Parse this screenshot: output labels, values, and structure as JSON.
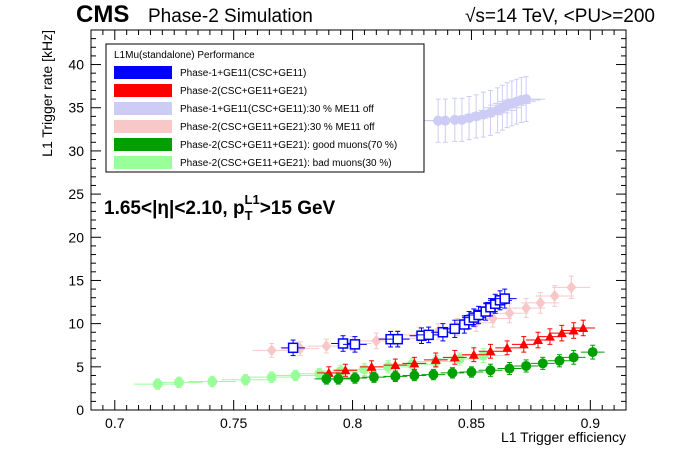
{
  "header": {
    "experiment": "CMS",
    "subtitle": "Phase-2 Simulation",
    "energy_pu": "√s=14 TeV, <PU>=200"
  },
  "chart_data": {
    "type": "scatter",
    "title": "",
    "xlabel": "L1 Trigger efficiency",
    "ylabel": "L1 Trigger rate [kHz]",
    "xlim": [
      0.69,
      0.915
    ],
    "ylim": [
      0,
      44
    ],
    "x_ticks": [
      "0.7",
      "0.75",
      "0.8",
      "0.85",
      "0.9"
    ],
    "y_ticks": [
      "0",
      "5",
      "10",
      "15",
      "20",
      "25",
      "30",
      "35",
      "40"
    ],
    "annotation": {
      "eta_prefix": "1.65<|η|<2.10, p",
      "sub": "T",
      "sup": "L1",
      "suffix": ">15 GeV"
    },
    "legend": {
      "title": "L1Mu(standalone) Performance",
      "position": "top-left"
    },
    "series": [
      {
        "name": "Phase-1+GE11(CSC+GE11)",
        "color": "#0000ff",
        "marker": "open-square",
        "points": [
          {
            "x": 0.775,
            "y": 7.2,
            "xerr": 0.005,
            "yerr": 0.9
          },
          {
            "x": 0.796,
            "y": 7.7,
            "xerr": 0.005,
            "yerr": 0.9
          },
          {
            "x": 0.801,
            "y": 7.6,
            "xerr": 0.005,
            "yerr": 0.9
          },
          {
            "x": 0.816,
            "y": 8.2,
            "xerr": 0.005,
            "yerr": 0.9
          },
          {
            "x": 0.819,
            "y": 8.2,
            "xerr": 0.005,
            "yerr": 0.9
          },
          {
            "x": 0.829,
            "y": 8.6,
            "xerr": 0.005,
            "yerr": 0.9
          },
          {
            "x": 0.832,
            "y": 8.7,
            "xerr": 0.005,
            "yerr": 0.9
          },
          {
            "x": 0.838,
            "y": 9.0,
            "xerr": 0.005,
            "yerr": 1.0
          },
          {
            "x": 0.843,
            "y": 9.4,
            "xerr": 0.005,
            "yerr": 1.0
          },
          {
            "x": 0.847,
            "y": 9.9,
            "xerr": 0.005,
            "yerr": 1.0
          },
          {
            "x": 0.849,
            "y": 10.4,
            "xerr": 0.005,
            "yerr": 1.0
          },
          {
            "x": 0.851,
            "y": 10.7,
            "xerr": 0.005,
            "yerr": 1.0
          },
          {
            "x": 0.853,
            "y": 11.0,
            "xerr": 0.005,
            "yerr": 1.0
          },
          {
            "x": 0.856,
            "y": 11.4,
            "xerr": 0.005,
            "yerr": 1.0
          },
          {
            "x": 0.858,
            "y": 11.9,
            "xerr": 0.005,
            "yerr": 1.0
          },
          {
            "x": 0.86,
            "y": 12.3,
            "xerr": 0.005,
            "yerr": 1.1
          },
          {
            "x": 0.862,
            "y": 12.7,
            "xerr": 0.005,
            "yerr": 1.1
          },
          {
            "x": 0.864,
            "y": 12.9,
            "xerr": 0.005,
            "yerr": 1.1
          }
        ]
      },
      {
        "name": "Phase-2(CSC+GE11+GE21)",
        "color": "#ff0000",
        "marker": "filled-triangle",
        "points": [
          {
            "x": 0.79,
            "y": 4.3,
            "xerr": 0.005,
            "yerr": 0.7
          },
          {
            "x": 0.797,
            "y": 4.6,
            "xerr": 0.005,
            "yerr": 0.7
          },
          {
            "x": 0.808,
            "y": 5.0,
            "xerr": 0.005,
            "yerr": 0.7
          },
          {
            "x": 0.818,
            "y": 5.2,
            "xerr": 0.005,
            "yerr": 0.7
          },
          {
            "x": 0.826,
            "y": 5.4,
            "xerr": 0.005,
            "yerr": 0.7
          },
          {
            "x": 0.835,
            "y": 5.8,
            "xerr": 0.005,
            "yerr": 0.8
          },
          {
            "x": 0.843,
            "y": 6.1,
            "xerr": 0.005,
            "yerr": 0.8
          },
          {
            "x": 0.851,
            "y": 6.4,
            "xerr": 0.005,
            "yerr": 0.8
          },
          {
            "x": 0.858,
            "y": 6.8,
            "xerr": 0.005,
            "yerr": 0.8
          },
          {
            "x": 0.865,
            "y": 7.2,
            "xerr": 0.005,
            "yerr": 0.8
          },
          {
            "x": 0.872,
            "y": 7.6,
            "xerr": 0.005,
            "yerr": 0.9
          },
          {
            "x": 0.878,
            "y": 8.1,
            "xerr": 0.005,
            "yerr": 0.9
          },
          {
            "x": 0.883,
            "y": 8.5,
            "xerr": 0.005,
            "yerr": 0.9
          },
          {
            "x": 0.888,
            "y": 8.9,
            "xerr": 0.005,
            "yerr": 0.9
          },
          {
            "x": 0.893,
            "y": 9.2,
            "xerr": 0.005,
            "yerr": 0.9
          },
          {
            "x": 0.897,
            "y": 9.5,
            "xerr": 0.005,
            "yerr": 0.9
          }
        ]
      },
      {
        "name": "Phase-1+GE11(CSC+GE11):30 % ME11 off",
        "color": "#ccccf5",
        "marker": "filled-circle",
        "points": [
          {
            "x": 0.836,
            "y": 33.5,
            "xerr": 0.008,
            "yerr": 2.5
          },
          {
            "x": 0.839,
            "y": 33.5,
            "xerr": 0.008,
            "yerr": 2.5
          },
          {
            "x": 0.843,
            "y": 33.6,
            "xerr": 0.008,
            "yerr": 2.5
          },
          {
            "x": 0.846,
            "y": 33.6,
            "xerr": 0.008,
            "yerr": 2.5
          },
          {
            "x": 0.849,
            "y": 33.8,
            "xerr": 0.008,
            "yerr": 2.5
          },
          {
            "x": 0.852,
            "y": 34.0,
            "xerr": 0.008,
            "yerr": 2.5
          },
          {
            "x": 0.855,
            "y": 34.2,
            "xerr": 0.008,
            "yerr": 2.6
          },
          {
            "x": 0.858,
            "y": 34.4,
            "xerr": 0.008,
            "yerr": 2.6
          },
          {
            "x": 0.861,
            "y": 34.7,
            "xerr": 0.008,
            "yerr": 2.6
          },
          {
            "x": 0.863,
            "y": 35.0,
            "xerr": 0.008,
            "yerr": 2.6
          },
          {
            "x": 0.865,
            "y": 35.3,
            "xerr": 0.008,
            "yerr": 2.6
          },
          {
            "x": 0.867,
            "y": 35.5,
            "xerr": 0.008,
            "yerr": 2.6
          },
          {
            "x": 0.869,
            "y": 35.7,
            "xerr": 0.008,
            "yerr": 2.6
          },
          {
            "x": 0.871,
            "y": 35.9,
            "xerr": 0.008,
            "yerr": 2.6
          },
          {
            "x": 0.873,
            "y": 36.0,
            "xerr": 0.008,
            "yerr": 2.6
          }
        ]
      },
      {
        "name": "Phase-2(CSC+GE11+GE21):30 % ME11 off",
        "color": "#f8c8c8",
        "marker": "filled-diamond",
        "points": [
          {
            "x": 0.766,
            "y": 6.9,
            "xerr": 0.008,
            "yerr": 0.8
          },
          {
            "x": 0.778,
            "y": 7.1,
            "xerr": 0.008,
            "yerr": 0.8
          },
          {
            "x": 0.789,
            "y": 7.4,
            "xerr": 0.008,
            "yerr": 0.8
          },
          {
            "x": 0.8,
            "y": 7.7,
            "xerr": 0.008,
            "yerr": 0.8
          },
          {
            "x": 0.81,
            "y": 8.0,
            "xerr": 0.008,
            "yerr": 0.9
          },
          {
            "x": 0.819,
            "y": 8.3,
            "xerr": 0.008,
            "yerr": 0.9
          },
          {
            "x": 0.828,
            "y": 8.7,
            "xerr": 0.008,
            "yerr": 0.9
          },
          {
            "x": 0.836,
            "y": 9.1,
            "xerr": 0.008,
            "yerr": 0.9
          },
          {
            "x": 0.844,
            "y": 9.6,
            "xerr": 0.008,
            "yerr": 1.0
          },
          {
            "x": 0.852,
            "y": 10.1,
            "xerr": 0.008,
            "yerr": 1.0
          },
          {
            "x": 0.859,
            "y": 10.6,
            "xerr": 0.008,
            "yerr": 1.0
          },
          {
            "x": 0.866,
            "y": 11.2,
            "xerr": 0.008,
            "yerr": 1.1
          },
          {
            "x": 0.873,
            "y": 11.8,
            "xerr": 0.008,
            "yerr": 1.1
          },
          {
            "x": 0.879,
            "y": 12.4,
            "xerr": 0.008,
            "yerr": 1.2
          },
          {
            "x": 0.885,
            "y": 13.2,
            "xerr": 0.008,
            "yerr": 1.2
          },
          {
            "x": 0.892,
            "y": 14.2,
            "xerr": 0.008,
            "yerr": 1.3
          }
        ]
      },
      {
        "name": "Phase-2(CSC+GE11+GE21): good muons(70 %)",
        "color": "#00a000",
        "marker": "filled-circle",
        "points": [
          {
            "x": 0.789,
            "y": 3.6,
            "xerr": 0.005,
            "yerr": 0.6
          },
          {
            "x": 0.794,
            "y": 3.6,
            "xerr": 0.005,
            "yerr": 0.6
          },
          {
            "x": 0.801,
            "y": 3.7,
            "xerr": 0.005,
            "yerr": 0.6
          },
          {
            "x": 0.809,
            "y": 3.8,
            "xerr": 0.005,
            "yerr": 0.6
          },
          {
            "x": 0.818,
            "y": 3.9,
            "xerr": 0.005,
            "yerr": 0.6
          },
          {
            "x": 0.826,
            "y": 4.0,
            "xerr": 0.005,
            "yerr": 0.6
          },
          {
            "x": 0.834,
            "y": 4.1,
            "xerr": 0.005,
            "yerr": 0.6
          },
          {
            "x": 0.842,
            "y": 4.3,
            "xerr": 0.005,
            "yerr": 0.6
          },
          {
            "x": 0.85,
            "y": 4.4,
            "xerr": 0.005,
            "yerr": 0.6
          },
          {
            "x": 0.858,
            "y": 4.6,
            "xerr": 0.005,
            "yerr": 0.7
          },
          {
            "x": 0.866,
            "y": 4.8,
            "xerr": 0.005,
            "yerr": 0.7
          },
          {
            "x": 0.873,
            "y": 5.1,
            "xerr": 0.005,
            "yerr": 0.7
          },
          {
            "x": 0.88,
            "y": 5.4,
            "xerr": 0.005,
            "yerr": 0.7
          },
          {
            "x": 0.887,
            "y": 5.7,
            "xerr": 0.005,
            "yerr": 0.7
          },
          {
            "x": 0.893,
            "y": 6.1,
            "xerr": 0.005,
            "yerr": 0.8
          },
          {
            "x": 0.901,
            "y": 6.7,
            "xerr": 0.005,
            "yerr": 0.8
          }
        ]
      },
      {
        "name": "Phase-2(CSC+GE11+GE21): bad muons(30 %)",
        "color": "#99ff99",
        "marker": "filled-circle",
        "points": [
          {
            "x": 0.718,
            "y": 3.0,
            "xerr": 0.01,
            "yerr": 0.6
          },
          {
            "x": 0.727,
            "y": 3.2,
            "xerr": 0.01,
            "yerr": 0.6
          },
          {
            "x": 0.741,
            "y": 3.3,
            "xerr": 0.01,
            "yerr": 0.6
          },
          {
            "x": 0.755,
            "y": 3.5,
            "xerr": 0.01,
            "yerr": 0.6
          },
          {
            "x": 0.766,
            "y": 3.8,
            "xerr": 0.01,
            "yerr": 0.6
          },
          {
            "x": 0.776,
            "y": 4.0,
            "xerr": 0.01,
            "yerr": 0.6
          },
          {
            "x": 0.786,
            "y": 4.2,
            "xerr": 0.01,
            "yerr": 0.6
          },
          {
            "x": 0.795,
            "y": 4.5,
            "xerr": 0.01,
            "yerr": 0.7
          },
          {
            "x": 0.805,
            "y": 4.7,
            "xerr": 0.01,
            "yerr": 0.7
          },
          {
            "x": 0.815,
            "y": 5.0,
            "xerr": 0.01,
            "yerr": 0.7
          },
          {
            "x": 0.825,
            "y": 5.3,
            "xerr": 0.01,
            "yerr": 0.7
          },
          {
            "x": 0.835,
            "y": 5.6,
            "xerr": 0.01,
            "yerr": 0.7
          },
          {
            "x": 0.845,
            "y": 5.9,
            "xerr": 0.01,
            "yerr": 0.7
          },
          {
            "x": 0.855,
            "y": 6.3,
            "xerr": 0.01,
            "yerr": 0.8
          }
        ]
      }
    ]
  }
}
